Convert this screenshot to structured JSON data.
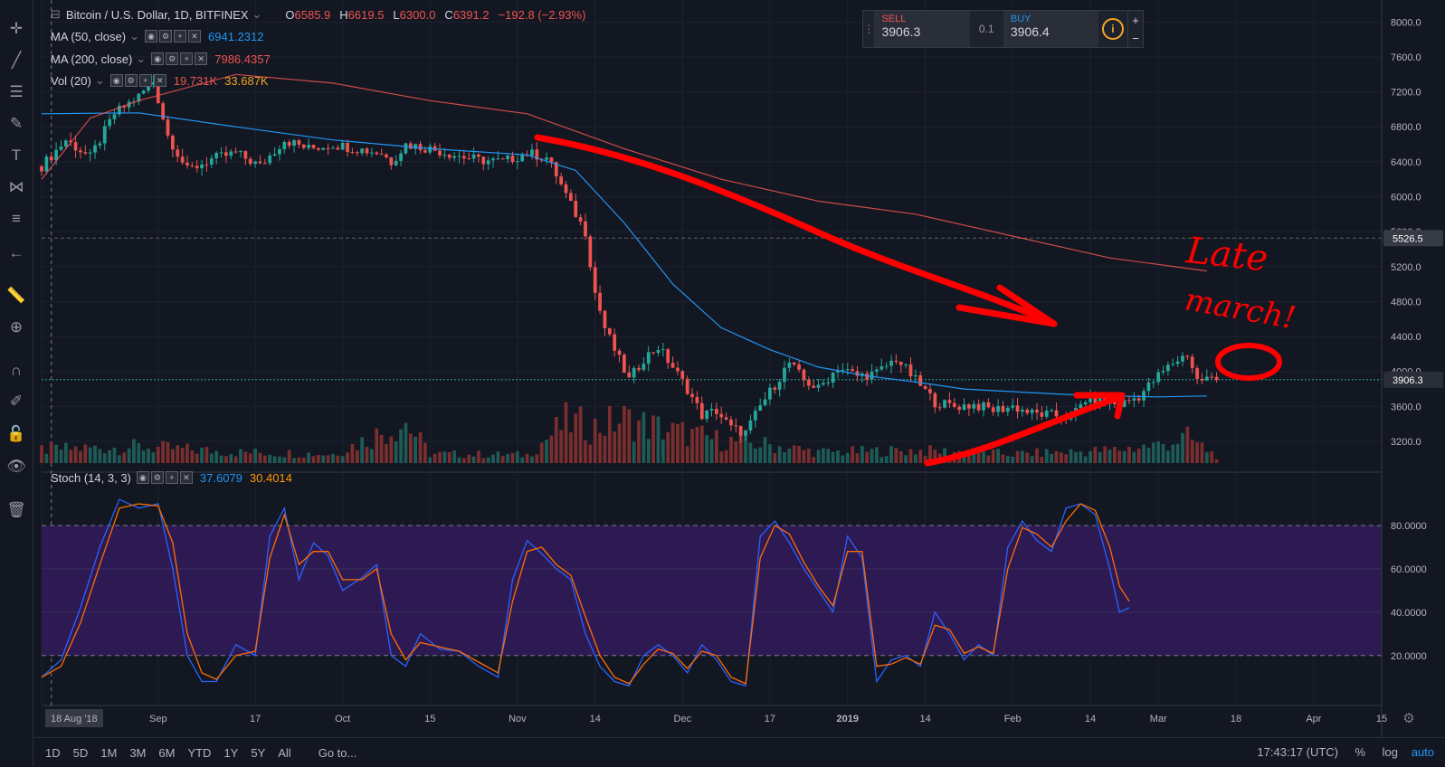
{
  "chart_title": {
    "symbol": "Bitcoin / U.S. Dollar, 1D, BITFINEX",
    "open_label": "O",
    "open": "6585.9",
    "high_label": "H",
    "high": "6619.5",
    "low_label": "L",
    "low": "6300.0",
    "close_label": "C",
    "close": "6391.2",
    "change": "−192.8 (−2.93%)"
  },
  "indicators": {
    "ma50": {
      "label": "MA (50, close)",
      "value": "6941.2312"
    },
    "ma200": {
      "label": "MA (200, close)",
      "value": "7986.4357"
    },
    "vol": {
      "label": "Vol (20)",
      "value1": "19.731K",
      "value2": "33.687K"
    },
    "stoch": {
      "label": "Stoch (14, 3, 3)",
      "k": "37.6079",
      "d": "30.4014"
    }
  },
  "trade_panel": {
    "sell_label": "SELL",
    "sell_price": "3906.3",
    "spread": "0.1",
    "buy_label": "BUY",
    "buy_price": "3906.4"
  },
  "bottom_bar": {
    "ranges": [
      "1D",
      "5D",
      "1M",
      "3M",
      "6M",
      "YTD",
      "1Y",
      "5Y",
      "All"
    ],
    "goto": "Go to...",
    "clock": "17:43:17 (UTC)",
    "percent": "%",
    "log": "log",
    "auto": "auto"
  },
  "annotations": {
    "line1": "Late",
    "line2": "march!"
  },
  "colors": {
    "background": "#131722",
    "up": "#26a69a",
    "down": "#ef5350",
    "ma50": "#2196f3",
    "ma200": "#ef5350",
    "stoch_k": "#2962ff",
    "stoch_d": "#ff6d00",
    "stoch_band": "#2e1a52",
    "annotation": "#ff0000"
  },
  "chart_data": [
    {
      "type": "candlestick",
      "title": "Bitcoin / U.S. Dollar, 1D, BITFINEX",
      "ylim": [
        2900,
        8200
      ],
      "y_ticks": [
        3200,
        3600,
        4000,
        4400,
        4800,
        5200,
        5600,
        6000,
        6400,
        6800,
        7200,
        7600,
        8000
      ],
      "y_tick_labels": [
        "3200.0",
        "3600.0",
        "4000.0",
        "4400.0",
        "4800.0",
        "5200.0",
        "5600.0",
        "6000.0",
        "6400.0",
        "6800.0",
        "7200.0",
        "7600.0",
        "8000.0"
      ],
      "x_ticks": [
        "18 Aug '18",
        "Sep",
        "17",
        "Oct",
        "15",
        "Nov",
        "14",
        "Dec",
        "17",
        "2019",
        "14",
        "Feb",
        "14",
        "Mar",
        "18",
        "Apr",
        "15"
      ],
      "price_tags": [
        {
          "label": "5526.5",
          "value": 5526.5
        },
        {
          "label": "3906.3",
          "value": 3906.3
        }
      ],
      "close_path": [
        [
          0,
          6350
        ],
        [
          5,
          6650
        ],
        [
          10,
          6450
        ],
        [
          15,
          6950
        ],
        [
          20,
          7150
        ],
        [
          23,
          7320
        ],
        [
          26,
          6700
        ],
        [
          30,
          6300
        ],
        [
          35,
          6430
        ],
        [
          40,
          6500
        ],
        [
          45,
          6350
        ],
        [
          50,
          6650
        ],
        [
          55,
          6550
        ],
        [
          60,
          6600
        ],
        [
          65,
          6550
        ],
        [
          70,
          6500
        ],
        [
          72,
          6400
        ],
        [
          75,
          6600
        ],
        [
          80,
          6550
        ],
        [
          85,
          6480
        ],
        [
          90,
          6420
        ],
        [
          95,
          6400
        ],
        [
          100,
          6500
        ],
        [
          104,
          6450
        ],
        [
          106,
          6250
        ],
        [
          109,
          5900
        ],
        [
          112,
          5600
        ],
        [
          114,
          4900
        ],
        [
          116,
          4500
        ],
        [
          118,
          4250
        ],
        [
          121,
          3900
        ],
        [
          124,
          4150
        ],
        [
          127,
          4280
        ],
        [
          130,
          4050
        ],
        [
          133,
          3800
        ],
        [
          136,
          3500
        ],
        [
          139,
          3550
        ],
        [
          142,
          3350
        ],
        [
          145,
          3300
        ],
        [
          148,
          3600
        ],
        [
          151,
          3850
        ],
        [
          154,
          4100
        ],
        [
          157,
          3900
        ],
        [
          160,
          3800
        ],
        [
          164,
          4050
        ],
        [
          168,
          3950
        ],
        [
          172,
          3980
        ],
        [
          176,
          4150
        ],
        [
          180,
          3900
        ],
        [
          184,
          3650
        ],
        [
          188,
          3600
        ],
        [
          192,
          3620
        ],
        [
          196,
          3560
        ],
        [
          200,
          3600
        ],
        [
          204,
          3520
        ],
        [
          208,
          3500
        ],
        [
          212,
          3480
        ],
        [
          215,
          3680
        ],
        [
          218,
          3650
        ],
        [
          222,
          3620
        ],
        [
          226,
          3720
        ],
        [
          230,
          3950
        ],
        [
          233,
          4100
        ],
        [
          236,
          4200
        ],
        [
          238,
          3900
        ],
        [
          240,
          3920
        ],
        [
          242,
          3906
        ]
      ],
      "ma50_path": [
        [
          0,
          6950
        ],
        [
          20,
          6960
        ],
        [
          40,
          6800
        ],
        [
          60,
          6650
        ],
        [
          80,
          6550
        ],
        [
          100,
          6480
        ],
        [
          110,
          6300
        ],
        [
          120,
          5700
        ],
        [
          130,
          5000
        ],
        [
          140,
          4500
        ],
        [
          150,
          4250
        ],
        [
          160,
          4050
        ],
        [
          170,
          3950
        ],
        [
          180,
          3880
        ],
        [
          190,
          3800
        ],
        [
          200,
          3770
        ],
        [
          210,
          3740
        ],
        [
          220,
          3720
        ],
        [
          230,
          3710
        ],
        [
          240,
          3720
        ]
      ],
      "ma200_path": [
        [
          0,
          6200
        ],
        [
          10,
          6900
        ],
        [
          20,
          7100
        ],
        [
          40,
          7400
        ],
        [
          60,
          7300
        ],
        [
          80,
          7100
        ],
        [
          100,
          6950
        ],
        [
          110,
          6750
        ],
        [
          120,
          6550
        ],
        [
          140,
          6200
        ],
        [
          160,
          5950
        ],
        [
          180,
          5800
        ],
        [
          200,
          5550
        ],
        [
          220,
          5300
        ],
        [
          240,
          5150
        ]
      ],
      "volume_path": [
        [
          0,
          15
        ],
        [
          20,
          18
        ],
        [
          40,
          12
        ],
        [
          60,
          10
        ],
        [
          75,
          45
        ],
        [
          80,
          10
        ],
        [
          100,
          9
        ],
        [
          108,
          45
        ],
        [
          114,
          40
        ],
        [
          120,
          48
        ],
        [
          130,
          35
        ],
        [
          140,
          25
        ],
        [
          150,
          20
        ],
        [
          160,
          12
        ],
        [
          180,
          14
        ],
        [
          200,
          10
        ],
        [
          210,
          12
        ],
        [
          220,
          14
        ],
        [
          230,
          20
        ],
        [
          236,
          28
        ],
        [
          242,
          8
        ]
      ],
      "x_range": [
        0,
        276
      ]
    },
    {
      "type": "line",
      "title": "Stoch (14, 3, 3)",
      "ylim": [
        0,
        100
      ],
      "y_ticks": [
        20,
        40,
        60,
        80
      ],
      "y_tick_labels": [
        "20.0000",
        "40.0000",
        "60.0000",
        "80.0000"
      ],
      "series": [
        {
          "name": "%K",
          "values": [
            [
              0,
              10
            ],
            [
              4,
              18
            ],
            [
              8,
              42
            ],
            [
              12,
              70
            ],
            [
              16,
              92
            ],
            [
              20,
              88
            ],
            [
              24,
              90
            ],
            [
              27,
              60
            ],
            [
              30,
              20
            ],
            [
              33,
              8
            ],
            [
              36,
              8
            ],
            [
              40,
              25
            ],
            [
              44,
              20
            ],
            [
              47,
              75
            ],
            [
              50,
              88
            ],
            [
              53,
              55
            ],
            [
              56,
              72
            ],
            [
              59,
              66
            ],
            [
              62,
              50
            ],
            [
              66,
              56
            ],
            [
              69,
              62
            ],
            [
              72,
              20
            ],
            [
              75,
              15
            ],
            [
              78,
              30
            ],
            [
              82,
              23
            ],
            [
              86,
              22
            ],
            [
              90,
              15
            ],
            [
              94,
              10
            ],
            [
              97,
              55
            ],
            [
              100,
              73
            ],
            [
              103,
              67
            ],
            [
              106,
              60
            ],
            [
              109,
              55
            ],
            [
              112,
              30
            ],
            [
              115,
              15
            ],
            [
              118,
              8
            ],
            [
              121,
              6
            ],
            [
              124,
              20
            ],
            [
              127,
              25
            ],
            [
              130,
              20
            ],
            [
              133,
              12
            ],
            [
              136,
              25
            ],
            [
              139,
              18
            ],
            [
              142,
              8
            ],
            [
              145,
              6
            ],
            [
              148,
              75
            ],
            [
              151,
              82
            ],
            [
              154,
              72
            ],
            [
              157,
              60
            ],
            [
              160,
              50
            ],
            [
              163,
              40
            ],
            [
              166,
              75
            ],
            [
              169,
              65
            ],
            [
              172,
              8
            ],
            [
              175,
              18
            ],
            [
              178,
              20
            ],
            [
              181,
              15
            ],
            [
              184,
              40
            ],
            [
              187,
              30
            ],
            [
              190,
              18
            ],
            [
              193,
              25
            ],
            [
              196,
              20
            ],
            [
              199,
              70
            ],
            [
              202,
              82
            ],
            [
              205,
              73
            ],
            [
              208,
              68
            ],
            [
              211,
              88
            ],
            [
              214,
              90
            ],
            [
              217,
              85
            ],
            [
              220,
              60
            ],
            [
              222,
              40
            ],
            [
              224,
              42
            ]
          ]
        },
        {
          "name": "%D",
          "values": [
            [
              0,
              10
            ],
            [
              4,
              15
            ],
            [
              8,
              35
            ],
            [
              12,
              62
            ],
            [
              16,
              88
            ],
            [
              20,
              90
            ],
            [
              24,
              89
            ],
            [
              27,
              72
            ],
            [
              30,
              30
            ],
            [
              33,
              12
            ],
            [
              36,
              9
            ],
            [
              40,
              20
            ],
            [
              44,
              22
            ],
            [
              47,
              65
            ],
            [
              50,
              85
            ],
            [
              53,
              62
            ],
            [
              56,
              68
            ],
            [
              59,
              68
            ],
            [
              62,
              55
            ],
            [
              66,
              55
            ],
            [
              69,
              60
            ],
            [
              72,
              30
            ],
            [
              75,
              18
            ],
            [
              78,
              26
            ],
            [
              82,
              24
            ],
            [
              86,
              22
            ],
            [
              90,
              17
            ],
            [
              94,
              12
            ],
            [
              97,
              45
            ],
            [
              100,
              68
            ],
            [
              103,
              70
            ],
            [
              106,
              62
            ],
            [
              109,
              57
            ],
            [
              112,
              38
            ],
            [
              115,
              20
            ],
            [
              118,
              10
            ],
            [
              121,
              7
            ],
            [
              124,
              16
            ],
            [
              127,
              23
            ],
            [
              130,
              21
            ],
            [
              133,
              14
            ],
            [
              136,
              22
            ],
            [
              139,
              20
            ],
            [
              142,
              10
            ],
            [
              145,
              7
            ],
            [
              148,
              65
            ],
            [
              151,
              80
            ],
            [
              154,
              76
            ],
            [
              157,
              63
            ],
            [
              160,
              52
            ],
            [
              163,
              43
            ],
            [
              166,
              68
            ],
            [
              169,
              68
            ],
            [
              172,
              15
            ],
            [
              175,
              16
            ],
            [
              178,
              19
            ],
            [
              181,
              16
            ],
            [
              184,
              34
            ],
            [
              187,
              32
            ],
            [
              190,
              21
            ],
            [
              193,
              24
            ],
            [
              196,
              21
            ],
            [
              199,
              60
            ],
            [
              202,
              79
            ],
            [
              205,
              76
            ],
            [
              208,
              70
            ],
            [
              211,
              82
            ],
            [
              214,
              90
            ],
            [
              217,
              87
            ],
            [
              220,
              70
            ],
            [
              222,
              52
            ],
            [
              224,
              45
            ]
          ]
        }
      ],
      "band": [
        20,
        80
      ]
    }
  ]
}
